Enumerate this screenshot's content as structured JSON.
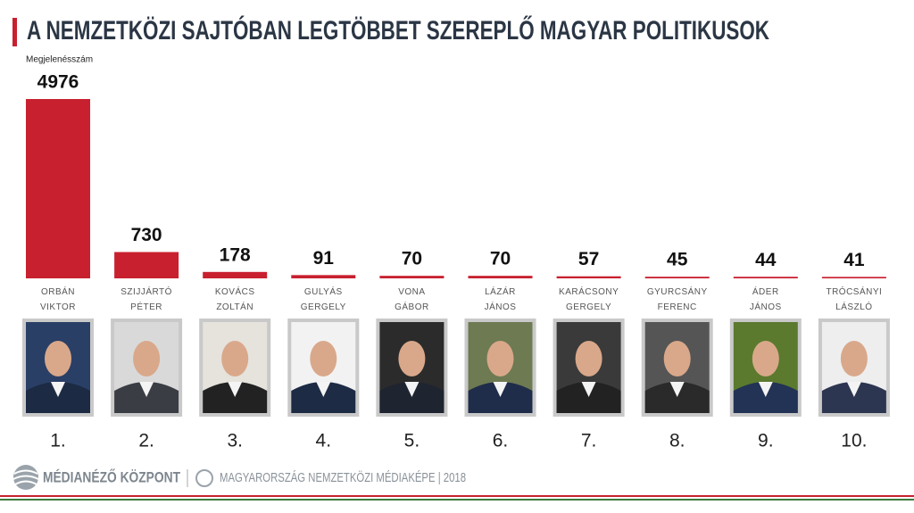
{
  "chart_data": {
    "type": "bar",
    "title": "A NEMZETKÖZI SAJTÓBAN LEGTÖBBET SZEREPLŐ MAGYAR POLITIKUSOK",
    "y_label": "Megjelenésszám",
    "categories": [
      "ORBÁN VIKTOR",
      "SZIJJÁRTÓ PÉTER",
      "KOVÁCS ZOLTÁN",
      "GULYÁS GERGELY",
      "VONA GÁBOR",
      "LÁZÁR JÁNOS",
      "KARÁCSONY GERGELY",
      "GYURCSÁNY FERENC",
      "ÁDER JÁNOS",
      "TRÓCSÁNYI LÁSZLÓ"
    ],
    "values": [
      4976,
      730,
      178,
      91,
      70,
      70,
      57,
      45,
      44,
      41
    ],
    "ranks": [
      "1.",
      "2.",
      "3.",
      "4.",
      "5.",
      "6.",
      "7.",
      "8.",
      "9.",
      "10."
    ],
    "color": "#c8202f"
  },
  "footer": {
    "brand": "MÉDIANÉZŐ KÖZPONT",
    "caption": "MAGYARORSZÁG NEMZETKÖZI MÉDIAKÉPE | 2018"
  }
}
